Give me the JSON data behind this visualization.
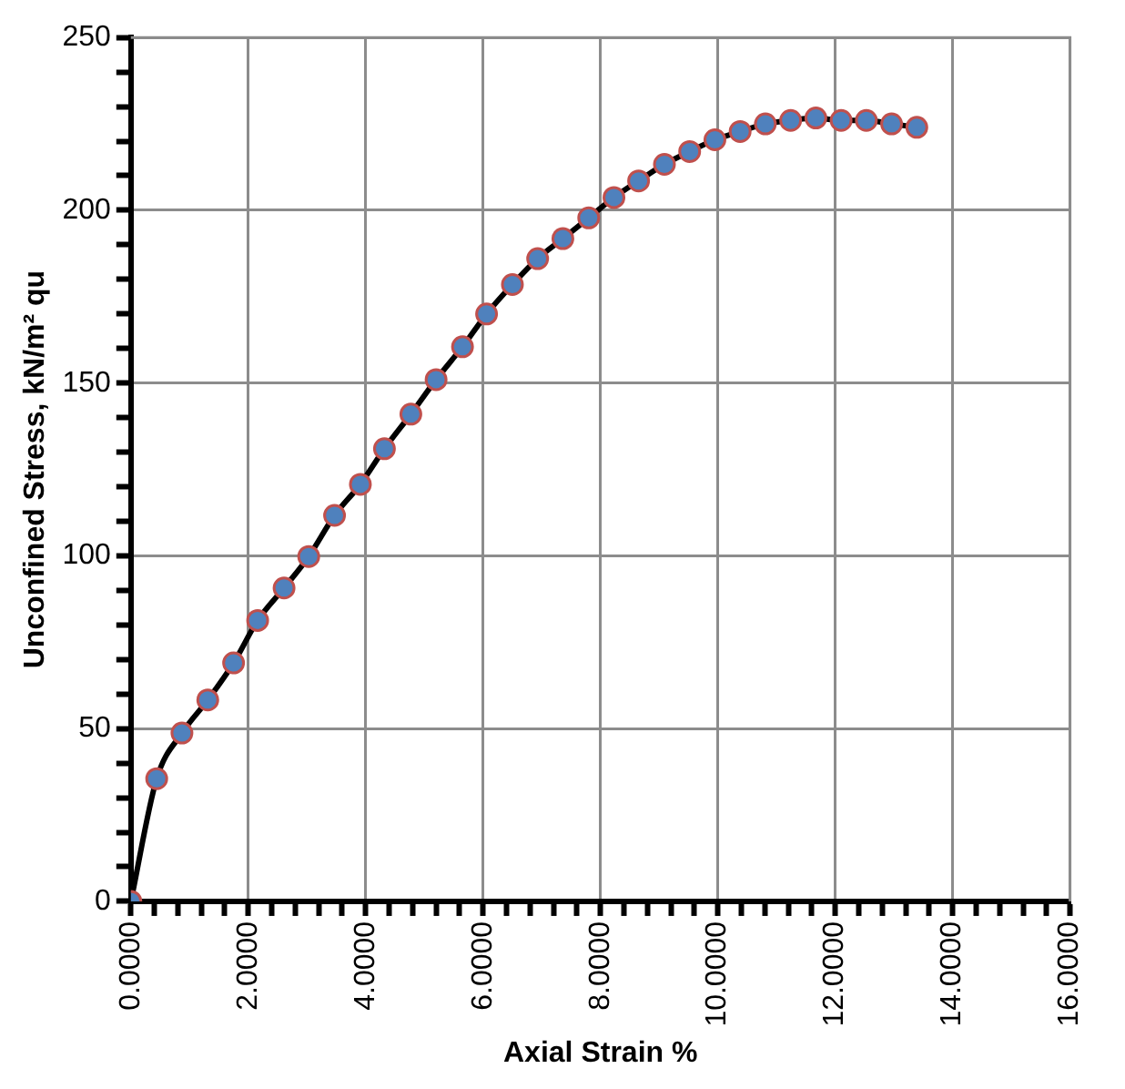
{
  "chart_data": {
    "type": "line",
    "xlabel": "Axial Strain %",
    "ylabel": "Unconfined Stress, kN/m² qu",
    "xlim": [
      0,
      16
    ],
    "xticks": [
      {
        "value": 0,
        "label": "0.0000"
      },
      {
        "value": 0.4,
        "label": null
      },
      {
        "value": 0.8,
        "label": null
      },
      {
        "value": 1.2,
        "label": null
      },
      {
        "value": 1.6,
        "label": null
      },
      {
        "value": 2,
        "label": "2.0000"
      },
      {
        "value": 2.4,
        "label": null
      },
      {
        "value": 2.8,
        "label": null
      },
      {
        "value": 3.2,
        "label": null
      },
      {
        "value": 3.6,
        "label": null
      },
      {
        "value": 4,
        "label": "4.0000"
      },
      {
        "value": 4.4,
        "label": null
      },
      {
        "value": 4.8,
        "label": null
      },
      {
        "value": 5.2,
        "label": null
      },
      {
        "value": 5.6,
        "label": null
      },
      {
        "value": 6,
        "label": "6.0000"
      },
      {
        "value": 6.4,
        "label": null
      },
      {
        "value": 6.8,
        "label": null
      },
      {
        "value": 7.2,
        "label": null
      },
      {
        "value": 7.6,
        "label": null
      },
      {
        "value": 8,
        "label": "8.0000"
      },
      {
        "value": 8.4,
        "label": null
      },
      {
        "value": 8.8,
        "label": null
      },
      {
        "value": 9.2,
        "label": null
      },
      {
        "value": 9.6,
        "label": null
      },
      {
        "value": 10,
        "label": "10.0000"
      },
      {
        "value": 10.4,
        "label": null
      },
      {
        "value": 10.8,
        "label": null
      },
      {
        "value": 11.2,
        "label": null
      },
      {
        "value": 11.6,
        "label": null
      },
      {
        "value": 12,
        "label": "12.0000"
      },
      {
        "value": 12.4,
        "label": null
      },
      {
        "value": 12.8,
        "label": null
      },
      {
        "value": 13.2,
        "label": null
      },
      {
        "value": 13.6,
        "label": null
      },
      {
        "value": 14,
        "label": "14.0000"
      },
      {
        "value": 14.4,
        "label": null
      },
      {
        "value": 14.8,
        "label": null
      },
      {
        "value": 15.2,
        "label": null
      },
      {
        "value": 15.6,
        "label": null
      },
      {
        "value": 16,
        "label": "16.0000"
      }
    ],
    "ylim": [
      0,
      250
    ],
    "yticks": [
      0,
      {
        "value": 10,
        "label": null
      },
      {
        "value": 20,
        "label": null
      },
      {
        "value": 30,
        "label": null
      },
      {
        "value": 40,
        "label": null
      },
      50,
      {
        "value": 60,
        "label": null
      },
      {
        "value": 70,
        "label": null
      },
      {
        "value": 80,
        "label": null
      },
      {
        "value": 90,
        "label": null
      },
      100,
      {
        "value": 110,
        "label": null
      },
      {
        "value": 120,
        "label": null
      },
      {
        "value": 130,
        "label": null
      },
      {
        "value": 140,
        "label": null
      },
      150,
      {
        "value": 160,
        "label": null
      },
      {
        "value": 170,
        "label": null
      },
      {
        "value": 180,
        "label": null
      },
      {
        "value": 190,
        "label": null
      },
      200,
      {
        "value": 210,
        "label": null
      },
      {
        "value": 220,
        "label": null
      },
      {
        "value": 230,
        "label": null
      },
      {
        "value": 240,
        "label": null
      },
      250
    ],
    "grid": true,
    "legend": false,
    "marker": "circle",
    "line_style": "solid",
    "x": [
      0,
      0.44,
      0.87,
      1.31,
      1.75,
      2.16,
      2.61,
      3.03,
      3.47,
      3.91,
      4.32,
      4.77,
      5.2,
      5.65,
      6.06,
      6.5,
      6.93,
      7.36,
      7.8,
      8.23,
      8.65,
      9.09,
      9.52,
      9.95,
      10.38,
      10.81,
      11.24,
      11.67,
      12.1,
      12.53,
      12.96,
      13.39
    ],
    "series": [
      {
        "color": "#4f81bd",
        "values": [
          0,
          35.5,
          48.7,
          58.3,
          69,
          81.3,
          90.7,
          99.8,
          111.7,
          120.7,
          131,
          141,
          151,
          160.5,
          170,
          178.5,
          186,
          191.8,
          197.8,
          203.7,
          208.5,
          213.3,
          217,
          220.4,
          222.8,
          225,
          226,
          226.7,
          226,
          226,
          225,
          224
        ]
      }
    ]
  }
}
